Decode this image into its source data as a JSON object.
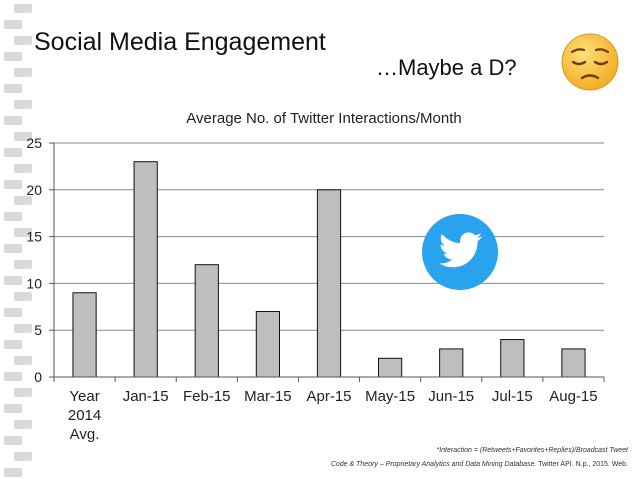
{
  "slide": {
    "title": "Social Media Engagement",
    "subtitle": "…Maybe a D?",
    "emoji_icon": "pensive-face-icon",
    "twitter_icon": "twitter-bird-icon"
  },
  "footnote": {
    "definition": "*Interaction = (Retweets+Favorites+Replies)/Broadcast Tweet",
    "source_italic": "Code & Theory – Proprietary Analytics and Data Mining Database.",
    "source_rest": " Twitter API. N.p., 2015. Web."
  },
  "colors": {
    "bar_fill": "#bebebe",
    "bar_stroke": "#111111",
    "twitter_blue": "#2aa3ef",
    "emoji_yellow": "#f7c23c"
  },
  "chart_data": {
    "type": "bar",
    "title": "Average No. of Twitter Interactions/Month",
    "categories": [
      "Year 2014 Avg.",
      "Jan-15",
      "Feb-15",
      "Mar-15",
      "Apr-15",
      "May-15",
      "Jun-15",
      "Jul-15",
      "Aug-15"
    ],
    "category_lines": [
      [
        "Year",
        "2014",
        "Avg."
      ],
      [
        "Jan-15"
      ],
      [
        "Feb-15"
      ],
      [
        "Mar-15"
      ],
      [
        "Apr-15"
      ],
      [
        "May-15"
      ],
      [
        "Jun-15"
      ],
      [
        "Jul-15"
      ],
      [
        "Aug-15"
      ]
    ],
    "values": [
      9,
      23,
      12,
      7,
      20,
      2,
      3,
      4,
      3
    ],
    "ylim": [
      0,
      25
    ],
    "yticks": [
      0,
      5,
      10,
      15,
      20,
      25
    ],
    "xlabel": "",
    "ylabel": "",
    "grid": true,
    "legend": "none"
  }
}
